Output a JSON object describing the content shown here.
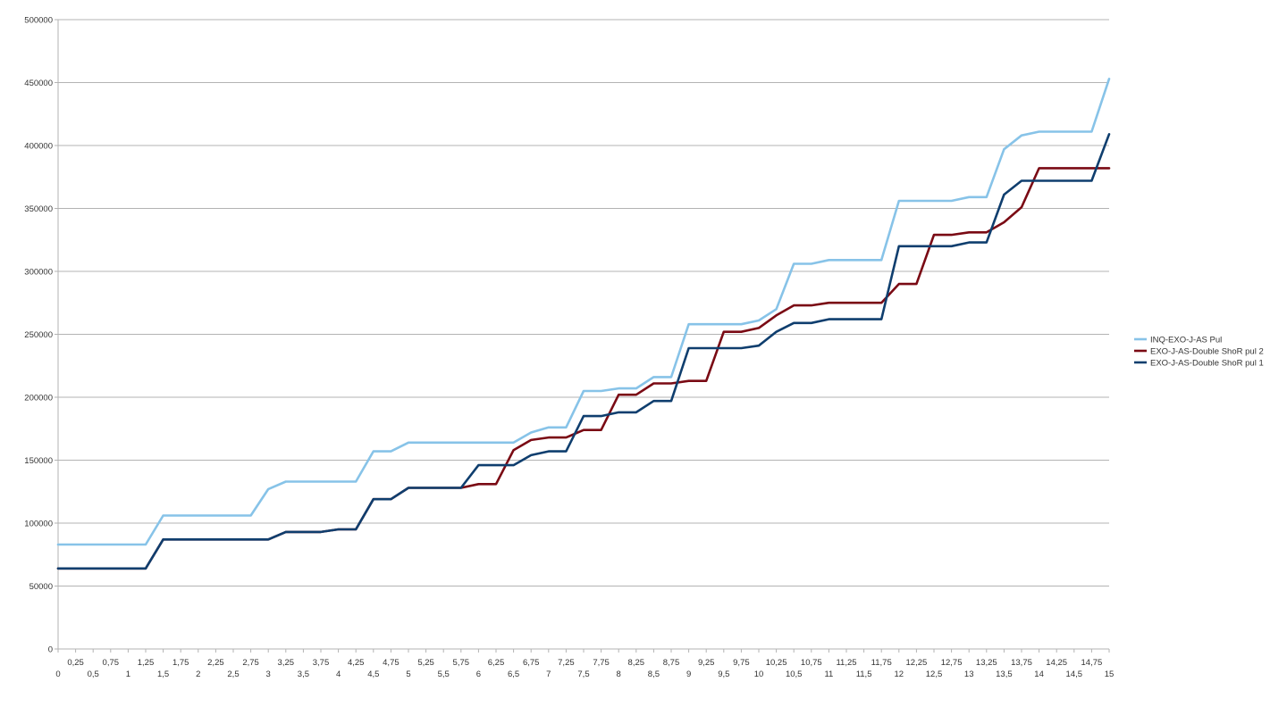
{
  "chart_data": {
    "type": "line",
    "title": "",
    "xlabel": "",
    "ylabel": "",
    "ylim": [
      0,
      500000
    ],
    "xlim": [
      0,
      15
    ],
    "grid": true,
    "legend_placement": "right",
    "yticks": [
      "0",
      "50000",
      "100000",
      "150000",
      "200000",
      "250000",
      "300000",
      "350000",
      "400000",
      "450000",
      "500000"
    ],
    "xticks_odd": [
      "0,25",
      "0,75",
      "1,25",
      "1,75",
      "2,25",
      "2,75",
      "3,25",
      "3,75",
      "4,25",
      "4,75",
      "5,25",
      "5,75",
      "6,25",
      "6,75",
      "7,25",
      "7,75",
      "8,25",
      "8,75",
      "9,25",
      "9,75",
      "10,25",
      "10,75",
      "11,25",
      "11,75",
      "12,25",
      "12,75",
      "13,25",
      "13,75",
      "14,25",
      "14,75"
    ],
    "xticks_even": [
      "0",
      "0,5",
      "1",
      "1,5",
      "2",
      "2,5",
      "3",
      "3,5",
      "4",
      "4,5",
      "5",
      "5,5",
      "6",
      "6,5",
      "7",
      "7,5",
      "8",
      "8,5",
      "9",
      "9,5",
      "10",
      "10,5",
      "11",
      "11,5",
      "12",
      "12,5",
      "13",
      "13,5",
      "14",
      "14,5",
      "15"
    ],
    "x": [
      0,
      0.25,
      0.5,
      0.75,
      1,
      1.25,
      1.5,
      1.75,
      2,
      2.25,
      2.5,
      2.75,
      3,
      3.25,
      3.5,
      3.75,
      4,
      4.25,
      4.5,
      4.75,
      5,
      5.25,
      5.5,
      5.75,
      6,
      6.25,
      6.5,
      6.75,
      7,
      7.25,
      7.5,
      7.75,
      8,
      8.25,
      8.5,
      8.75,
      9,
      9.25,
      9.5,
      9.75,
      10,
      10.25,
      10.5,
      10.75,
      11,
      11.25,
      11.5,
      11.75,
      12,
      12.25,
      12.5,
      12.75,
      13,
      13.25,
      13.5,
      13.75,
      14,
      14.25,
      14.5,
      14.75,
      15
    ],
    "series": [
      {
        "name": "INQ-EXO-J-AS Pul",
        "color": "#87c3e8",
        "values": [
          83000,
          83000,
          83000,
          83000,
          83000,
          83000,
          106000,
          106000,
          106000,
          106000,
          106000,
          106000,
          127000,
          133000,
          133000,
          133000,
          133000,
          133000,
          157000,
          157000,
          164000,
          164000,
          164000,
          164000,
          164000,
          164000,
          164000,
          172000,
          176000,
          176000,
          205000,
          205000,
          207000,
          207000,
          216000,
          216000,
          258000,
          258000,
          258000,
          258000,
          261000,
          270000,
          306000,
          306000,
          309000,
          309000,
          309000,
          309000,
          356000,
          356000,
          356000,
          356000,
          359000,
          359000,
          397000,
          408000,
          411000,
          411000,
          411000,
          411000,
          453000
        ]
      },
      {
        "name": "EXO-J-AS-Double ShoR pul 2",
        "color": "#7a0a14",
        "values": [
          64000,
          64000,
          64000,
          64000,
          64000,
          64000,
          87000,
          87000,
          87000,
          87000,
          87000,
          87000,
          87000,
          93000,
          93000,
          93000,
          95000,
          95000,
          119000,
          119000,
          128000,
          128000,
          128000,
          128000,
          131000,
          131000,
          158000,
          166000,
          168000,
          168000,
          174000,
          174000,
          202000,
          202000,
          211000,
          211000,
          213000,
          213000,
          252000,
          252000,
          255000,
          265000,
          273000,
          273000,
          275000,
          275000,
          275000,
          275000,
          290000,
          290000,
          329000,
          329000,
          331000,
          331000,
          339000,
          351000,
          382000,
          382000,
          382000,
          382000,
          382000
        ]
      },
      {
        "name": "EXO-J-AS-Double ShoR pul 1",
        "color": "#0f3e6e",
        "values": [
          64000,
          64000,
          64000,
          64000,
          64000,
          64000,
          87000,
          87000,
          87000,
          87000,
          87000,
          87000,
          87000,
          93000,
          93000,
          93000,
          95000,
          95000,
          119000,
          119000,
          128000,
          128000,
          128000,
          128000,
          146000,
          146000,
          146000,
          154000,
          157000,
          157000,
          185000,
          185000,
          188000,
          188000,
          197000,
          197000,
          239000,
          239000,
          239000,
          239000,
          241000,
          252000,
          259000,
          259000,
          262000,
          262000,
          262000,
          262000,
          320000,
          320000,
          320000,
          320000,
          323000,
          323000,
          361000,
          372000,
          372000,
          372000,
          372000,
          372000,
          409000
        ]
      }
    ]
  }
}
